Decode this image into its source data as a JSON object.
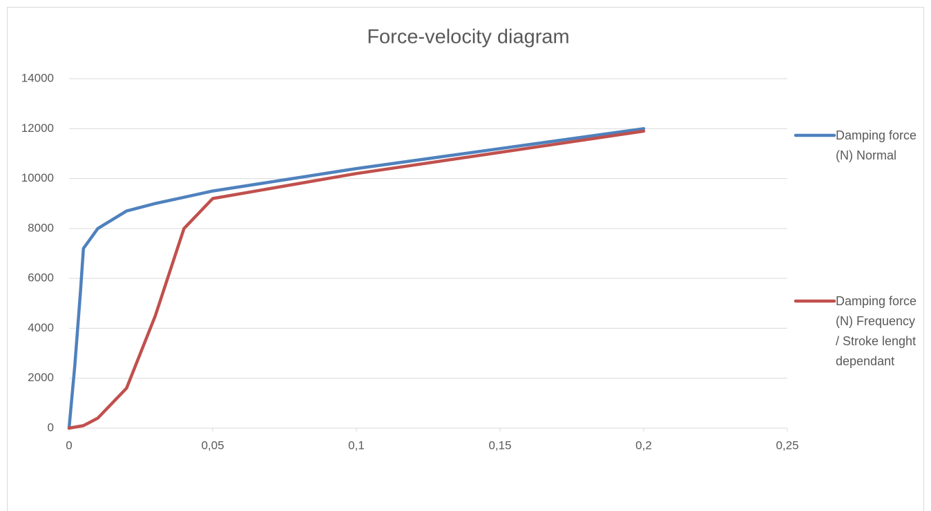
{
  "chart_data": {
    "type": "line",
    "title": "Force-velocity diagram",
    "series": [
      {
        "name": "Damping force (N) Normal",
        "color": "#4f81bd",
        "x": [
          0,
          0.002,
          0.004,
          0.005,
          0.01,
          0.02,
          0.03,
          0.04,
          0.05,
          0.075,
          0.1,
          0.15,
          0.2
        ],
        "values": [
          0,
          2500,
          5500,
          7200,
          8000,
          8700,
          9000,
          9250,
          9500,
          9950,
          10400,
          11200,
          12000
        ]
      },
      {
        "name": "Damping force (N) Frequency / Stroke lenght dependant",
        "color": "#c0504d",
        "x": [
          0,
          0.005,
          0.01,
          0.02,
          0.03,
          0.04,
          0.05,
          0.075,
          0.1,
          0.15,
          0.2
        ],
        "values": [
          0,
          100,
          400,
          1600,
          4500,
          8000,
          9200,
          9700,
          10200,
          11050,
          11900
        ]
      }
    ],
    "xlim": [
      0,
      0.25
    ],
    "xticks": [
      0,
      {
        "value": 0.05,
        "label": "0,05"
      },
      {
        "value": 0.1,
        "label": "0,1"
      },
      {
        "value": 0.15,
        "label": "0,15"
      },
      {
        "value": 0.2,
        "label": "0,2"
      },
      {
        "value": 0.25,
        "label": "0,25"
      }
    ],
    "ylim": [
      0,
      14000
    ],
    "yticks": [
      0,
      2000,
      4000,
      6000,
      8000,
      10000,
      12000,
      14000
    ],
    "grid": true,
    "legend": "right"
  }
}
